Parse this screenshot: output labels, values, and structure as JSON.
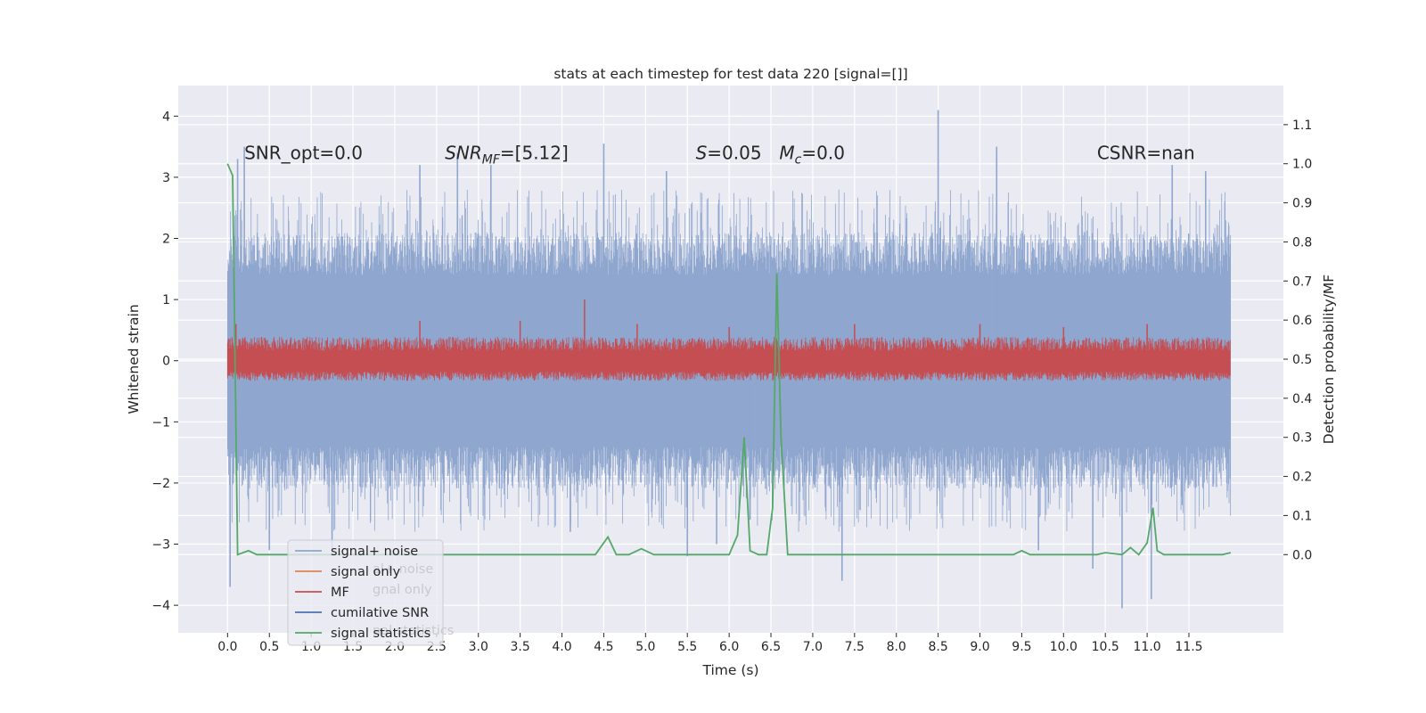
{
  "chart_data": {
    "type": "line",
    "title": "stats at each timestep for test data 220 [signal=[]]",
    "xlabel": "Time (s)",
    "ylabel_left": "Whitened strain",
    "ylabel_right": "Detection probability/MF",
    "xlim": [
      -0.59,
      12.63
    ],
    "ylim_left": [
      -4.45,
      4.5
    ],
    "ylim_right": [
      -0.2,
      1.2
    ],
    "x_ticks": [
      0.0,
      0.5,
      1.0,
      1.5,
      2.0,
      2.5,
      3.0,
      3.5,
      4.0,
      4.5,
      5.0,
      5.5,
      6.0,
      6.5,
      7.0,
      7.5,
      8.0,
      8.5,
      9.0,
      9.5,
      10.0,
      10.5,
      11.0,
      11.5
    ],
    "x_tick_labels": [
      "0.0",
      "0.5",
      "1.0",
      "1.5",
      "2.0",
      "2.5",
      "3.0",
      "3.5",
      "4.0",
      "4.5",
      "5.0",
      "5.5",
      "6.0",
      "6.5",
      "7.0",
      "7.5",
      "8.0",
      "8.5",
      "9.0",
      "9.5",
      "10.0",
      "10.5",
      "11.0",
      "11.5"
    ],
    "y_left_ticks": [
      4,
      3,
      2,
      1,
      0,
      -1,
      -2,
      -3,
      -4
    ],
    "y_left_tick_labels": [
      "4",
      "3",
      "2",
      "1",
      "0",
      "−1",
      "−2",
      "−3",
      "−4"
    ],
    "y_right_ticks": [
      1.1,
      1.0,
      0.9,
      0.8,
      0.7,
      0.6,
      0.5,
      0.4,
      0.3,
      0.2,
      0.1,
      0.0
    ],
    "y_right_tick_labels": [
      "1.1",
      "1.0",
      "0.9",
      "0.8",
      "0.7",
      "0.6",
      "0.5",
      "0.4",
      "0.3",
      "0.2",
      "0.1",
      "0.0"
    ],
    "grid": true,
    "legend_position": "lower-left",
    "annotations": [
      {
        "text": "SNR_opt=0.0",
        "x": 0.2
      },
      {
        "text": "SNR_MF=[5.12]",
        "x": 2.6
      },
      {
        "text": "S=0.05",
        "x": 5.6
      },
      {
        "text": "M_c=0.0",
        "x": 6.6
      },
      {
        "text": "CSNR=nan",
        "x": 10.4
      }
    ],
    "annotation_y": 3.3,
    "noise_series": {
      "name": "signal+ noise",
      "color": "#8fa6cf",
      "axis": "left",
      "t_start": 0.0,
      "t_end": 12.0,
      "core_amplitude": 1.4,
      "peaks": [
        [
          0.03,
          -3.7
        ],
        [
          0.12,
          3.3
        ],
        [
          0.2,
          3.5
        ],
        [
          0.5,
          -3.1
        ],
        [
          1.25,
          -3.2
        ],
        [
          2.3,
          3.2
        ],
        [
          2.75,
          3.4
        ],
        [
          3.15,
          3.2
        ],
        [
          4.1,
          -2.8
        ],
        [
          4.5,
          3.55
        ],
        [
          5.25,
          3.1
        ],
        [
          5.5,
          -3.2
        ],
        [
          5.85,
          -3.0
        ],
        [
          6.25,
          -2.6
        ],
        [
          7.35,
          -3.6
        ],
        [
          8.5,
          4.1
        ],
        [
          9.2,
          3.5
        ],
        [
          9.7,
          -3.1
        ],
        [
          10.35,
          -3.4
        ],
        [
          10.7,
          -4.05
        ],
        [
          11.05,
          -3.9
        ],
        [
          11.3,
          3.2
        ],
        [
          11.7,
          3.1
        ]
      ]
    },
    "mf_series": {
      "name": "MF",
      "color": "#c44e52",
      "axis": "left",
      "t_start": 0.0,
      "t_end": 12.0,
      "band": [
        -0.3,
        0.3
      ],
      "peaks": [
        [
          0.1,
          0.6
        ],
        [
          2.3,
          0.65
        ],
        [
          3.5,
          0.65
        ],
        [
          4.27,
          1.0
        ],
        [
          4.9,
          0.6
        ],
        [
          6.0,
          0.55
        ],
        [
          7.5,
          0.6
        ],
        [
          9.0,
          0.6
        ],
        [
          10.0,
          0.55
        ],
        [
          11.0,
          0.6
        ]
      ]
    },
    "series": [
      {
        "name": "signal statistics",
        "color": "#55a868",
        "axis": "right",
        "x": [
          0.0,
          0.06,
          0.12,
          0.25,
          0.35,
          0.5,
          1.0,
          2.0,
          3.0,
          4.0,
          4.4,
          4.55,
          4.65,
          4.8,
          4.95,
          5.1,
          5.3,
          6.0,
          6.1,
          6.18,
          6.25,
          6.35,
          6.45,
          6.52,
          6.57,
          6.62,
          6.7,
          6.8,
          7.0,
          8.0,
          9.0,
          9.4,
          9.5,
          9.6,
          10.0,
          10.4,
          10.5,
          10.7,
          10.8,
          10.9,
          11.0,
          11.07,
          11.12,
          11.2,
          11.3,
          11.9,
          12.0
        ],
        "y": [
          1.0,
          0.97,
          0.0,
          0.01,
          0.0,
          0.0,
          0.0,
          0.0,
          0.0,
          0.0,
          0.0,
          0.045,
          0.0,
          0.0,
          0.015,
          0.0,
          0.0,
          0.0,
          0.05,
          0.3,
          0.01,
          0.0,
          0.0,
          0.12,
          0.72,
          0.3,
          0.0,
          0.0,
          0.0,
          0.0,
          0.0,
          0.0,
          0.01,
          0.0,
          0.0,
          0.0,
          0.005,
          0.0,
          0.018,
          0.0,
          0.03,
          0.12,
          0.01,
          0.0,
          0.0,
          0.0,
          0.005
        ]
      }
    ],
    "legend": [
      {
        "label": "signal+ noise",
        "color": "#8fa6cf"
      },
      {
        "label": "signal only",
        "color": "#dd8452"
      },
      {
        "label": "MF",
        "color": "#c44e52"
      },
      {
        "label": "cumilative SNR",
        "color": "#4c72b0"
      },
      {
        "label": "signal statistics",
        "color": "#55a868"
      }
    ],
    "legend_ghost_labels": [
      "al+ noise",
      "gnal only",
      "nal statistics"
    ]
  }
}
